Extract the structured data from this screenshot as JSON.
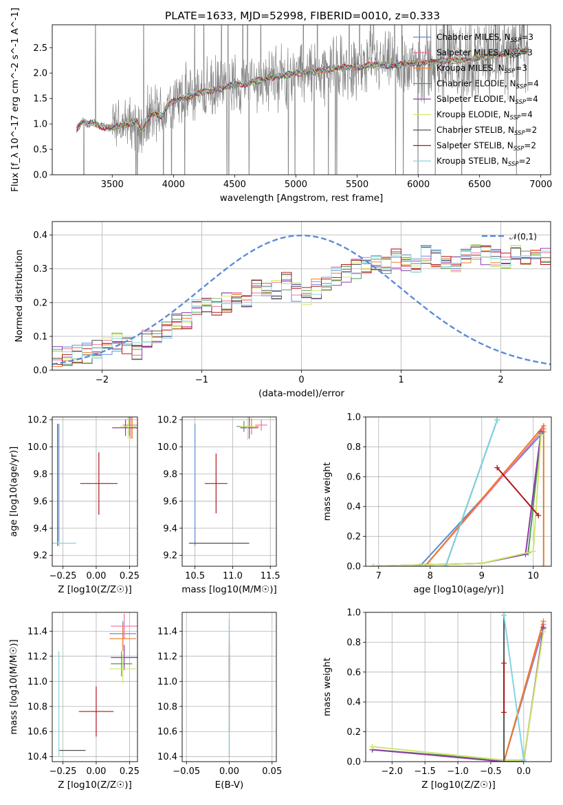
{
  "figure_title": "PLATE=1633, MJD=52998, FIBERID=0010, z=0.333",
  "colors": {
    "Chabrier MILES": "#5b8bd8",
    "Salpeter MILES": "#f06e9c",
    "Kroupa MILES": "#ec7a26",
    "Chabrier ELODIE": "#4e9a4e",
    "Salpeter ELODIE": "#8c3ab0",
    "Kroupa ELODIE": "#cde86a",
    "Chabrier STELIB": "#505050",
    "Salpeter STELIB": "#b01419",
    "Kroupa STELIB": "#7fd5e0",
    "data": "#808080",
    "gauss": "#5b8bd8"
  },
  "chart_data": [
    {
      "id": "spectrum",
      "type": "line",
      "title": "PLATE=1633, MJD=52998, FIBERID=0010, z=0.333",
      "xlabel": "wavelength [Angstrom, rest frame]",
      "ylabel": "Flux [f_λ 10^-17 erg cm^-2 s^-1 A^-1]",
      "xlim": [
        3010,
        7080
      ],
      "ylim": [
        0,
        2.95
      ],
      "xticks": [
        3500,
        4000,
        4500,
        5000,
        5500,
        6000,
        6500,
        7000
      ],
      "yticks": [
        0.0,
        0.5,
        1.0,
        1.5,
        2.0,
        2.5
      ],
      "continuum": {
        "x": [
          3210,
          3260,
          3300,
          3350,
          3400,
          3450,
          3500,
          3550,
          3600,
          3650,
          3700,
          3750,
          3800,
          3850,
          3900,
          3950,
          4000,
          4100,
          4200,
          4300,
          4400,
          4500,
          4600,
          4700,
          4800,
          4900,
          5000,
          5100,
          5200,
          5300,
          5400,
          5500,
          5600,
          5700,
          5800,
          5900,
          6000,
          6100,
          6200,
          6300,
          6400,
          6500,
          6600,
          6700,
          6800,
          6850,
          6900
        ],
        "y": [
          0.9,
          1.05,
          1.0,
          1.02,
          0.96,
          0.92,
          0.93,
          0.96,
          1.0,
          1.02,
          1.06,
          0.86,
          1.13,
          1.22,
          1.15,
          1.35,
          1.45,
          1.52,
          1.6,
          1.65,
          1.7,
          1.78,
          1.8,
          1.85,
          1.92,
          1.95,
          2.0,
          2.02,
          2.05,
          2.08,
          2.12,
          2.12,
          2.15,
          2.16,
          2.14,
          2.18,
          2.2,
          2.22,
          2.24,
          2.25,
          2.27,
          2.3,
          2.34,
          2.38,
          2.42,
          2.45,
          2.45
        ]
      },
      "series": [
        {
          "name": "Chabrier MILES, N_SSP=3"
        },
        {
          "name": "Salpeter MILES, N_SSP=3"
        },
        {
          "name": "Kroupa MILES, N_SSP=3"
        },
        {
          "name": "Chabrier ELODIE, N_SSP=4"
        },
        {
          "name": "Salpeter ELODIE, N_SSP=4"
        },
        {
          "name": "Kroupa ELODIE, N_SSP=4"
        },
        {
          "name": "Chabrier STELIB, N_SSP=2"
        },
        {
          "name": "Salpeter STELIB, N_SSP=2"
        },
        {
          "name": "Kroupa STELIB, N_SSP=2"
        }
      ],
      "legend": "top-right"
    },
    {
      "id": "residuals",
      "type": "line",
      "xlabel": "(data-model)/error",
      "ylabel": "Normed distribution",
      "xlim": [
        -2.5,
        2.5
      ],
      "ylim": [
        0,
        0.44
      ],
      "xticks": [
        -2,
        -1,
        0,
        1,
        2
      ],
      "yticks": [
        0.0,
        0.1,
        0.2,
        0.3,
        0.4
      ],
      "bin_width": 0.1,
      "histogram_mean": [
        0.04,
        0.04,
        0.05,
        0.05,
        0.06,
        0.07,
        0.08,
        0.07,
        0.06,
        0.09,
        0.1,
        0.12,
        0.14,
        0.15,
        0.18,
        0.2,
        0.19,
        0.2,
        0.22,
        0.21,
        0.24,
        0.25,
        0.24,
        0.26,
        0.23,
        0.22,
        0.24,
        0.26,
        0.28,
        0.29,
        0.3,
        0.31,
        0.32,
        0.31,
        0.33,
        0.32,
        0.31,
        0.34,
        0.33,
        0.33,
        0.32,
        0.34,
        0.35,
        0.34,
        0.33,
        0.33,
        0.34,
        0.33,
        0.35,
        0.34,
        0.36,
        0.33,
        0.34,
        0.32,
        0.33,
        0.34,
        0.32,
        0.3,
        0.31,
        0.29,
        0.24,
        0.25,
        0.25,
        0.23,
        0.23,
        0.21,
        0.23,
        0.24,
        0.22,
        0.23,
        0.22,
        0.18,
        0.16,
        0.14,
        0.13,
        0.12,
        0.11,
        0.1,
        0.09,
        0.08,
        0.08,
        0.07,
        0.06,
        0.06,
        0.05,
        0.05,
        0.04,
        0.04,
        0.04,
        0.04,
        0.04
      ],
      "gaussian": {
        "name": "𝒩(0,1)",
        "mean": 0,
        "sigma": 1
      },
      "legend": "top-right"
    },
    {
      "id": "age-vs-Z",
      "type": "scatter",
      "xlabel": "Z [log10(Z/Z☉)]",
      "ylabel": "age [log10(age/yr)]",
      "xlim": [
        -0.33,
        0.31
      ],
      "ylim": [
        9.12,
        10.22
      ],
      "xticks": [
        -0.25,
        0.0,
        0.25
      ],
      "yticks": [
        9.2,
        9.4,
        9.6,
        9.8,
        10.0,
        10.2
      ],
      "points": [
        {
          "s": "Chabrier MILES",
          "x": -0.28,
          "y": 9.72,
          "ex": 0.0,
          "ey": 0.45
        },
        {
          "s": "Salpeter MILES",
          "x": 0.26,
          "y": 10.16,
          "ex": 0.06,
          "ey": 0.1
        },
        {
          "s": "Kroupa MILES",
          "x": 0.27,
          "y": 10.14,
          "ex": 0.05,
          "ey": 0.08
        },
        {
          "s": "Chabrier ELODIE",
          "x": 0.25,
          "y": 10.15,
          "ex": 0.05,
          "ey": 0.07
        },
        {
          "s": "Salpeter ELODIE",
          "x": 0.22,
          "y": 10.14,
          "ex": 0.1,
          "ey": 0.06
        },
        {
          "s": "Kroupa ELODIE",
          "x": 0.24,
          "y": 10.15,
          "ex": 0.06,
          "ey": 0.09
        },
        {
          "s": "Chabrier STELIB",
          "x": -0.29,
          "y": 9.72,
          "ex": 0.0,
          "ey": 0.45
        },
        {
          "s": "Salpeter STELIB",
          "x": 0.02,
          "y": 9.73,
          "ex": 0.14,
          "ey": 0.23
        },
        {
          "s": "Kroupa STELIB",
          "x": -0.28,
          "y": 9.29,
          "ex": 0.13,
          "ey": 0.02
        }
      ]
    },
    {
      "id": "age-vs-mass",
      "type": "scatter",
      "xlabel": "mass [log10(M/M☉)]",
      "ylabel": "",
      "xlim": [
        10.33,
        11.58
      ],
      "ylim": [
        9.12,
        10.22
      ],
      "xticks": [
        10.5,
        11.0,
        11.5
      ],
      "yticks": [
        9.2,
        9.4,
        9.6,
        9.8,
        10.0,
        10.2
      ],
      "points": [
        {
          "s": "Chabrier MILES",
          "x": 10.5,
          "y": 9.72,
          "ex": 0.0,
          "ey": 0.45
        },
        {
          "s": "Salpeter MILES",
          "x": 11.38,
          "y": 10.16,
          "ex": 0.08,
          "ey": 0.04
        },
        {
          "s": "Kroupa MILES",
          "x": 11.25,
          "y": 10.15,
          "ex": 0.1,
          "ey": 0.06
        },
        {
          "s": "Chabrier ELODIE",
          "x": 11.15,
          "y": 10.15,
          "ex": 0.1,
          "ey": 0.04
        },
        {
          "s": "Salpeter ELODIE",
          "x": 11.22,
          "y": 10.14,
          "ex": 0.12,
          "ey": 0.08
        },
        {
          "s": "Kroupa ELODIE",
          "x": 11.2,
          "y": 10.15,
          "ex": 0.1,
          "ey": 0.1
        },
        {
          "s": "Chabrier STELIB",
          "x": 10.82,
          "y": 9.29,
          "ex": 0.4,
          "ey": 0.0
        },
        {
          "s": "Salpeter STELIB",
          "x": 10.78,
          "y": 9.73,
          "ex": 0.15,
          "ey": 0.22
        },
        {
          "s": "Kroupa STELIB",
          "x": 10.5,
          "y": 9.29,
          "ex": 0.0,
          "ey": 0.0
        }
      ]
    },
    {
      "id": "mass-weight-vs-age",
      "type": "line",
      "xlabel": "age [log10(age/yr)]",
      "ylabel": "mass weight",
      "xlim": [
        6.75,
        10.35
      ],
      "ylim": [
        0,
        1.0
      ],
      "xticks": [
        7,
        8,
        9,
        10
      ],
      "yticks": [
        0.0,
        0.2,
        0.4,
        0.6,
        0.8,
        1.0
      ],
      "lines": [
        {
          "s": "Chabrier MILES",
          "x": [
            7.8,
            10.2
          ],
          "y": [
            0.0,
            0.9
          ]
        },
        {
          "s": "Salpeter MILES",
          "x": [
            7.9,
            10.2
          ],
          "y": [
            0.0,
            0.92
          ]
        },
        {
          "s": "Kroupa MILES",
          "x": [
            7.9,
            10.2,
            10.2
          ],
          "y": [
            0.0,
            0.94,
            0.0
          ]
        },
        {
          "s": "Chabrier ELODIE",
          "x": [
            6.9,
            9.0,
            9.9,
            10.15
          ],
          "y": [
            0.0,
            0.02,
            0.09,
            0.89
          ]
        },
        {
          "s": "Salpeter ELODIE",
          "x": [
            6.9,
            9.0,
            9.85,
            10.15
          ],
          "y": [
            0.0,
            0.02,
            0.08,
            0.9
          ]
        },
        {
          "s": "Kroupa ELODIE",
          "x": [
            6.9,
            9.0,
            10.0,
            10.15
          ],
          "y": [
            0.0,
            0.02,
            0.1,
            0.88
          ]
        },
        {
          "s": "Chabrier STELIB",
          "x": [
            8.3,
            9.3
          ],
          "y": [
            0.0,
            0.98
          ]
        },
        {
          "s": "Salpeter STELIB",
          "x": [
            9.3,
            10.1
          ],
          "y": [
            0.66,
            0.34
          ]
        },
        {
          "s": "Kroupa STELIB",
          "x": [
            8.3,
            9.3
          ],
          "y": [
            0.0,
            0.98
          ]
        }
      ]
    },
    {
      "id": "mass-vs-Z",
      "type": "scatter",
      "xlabel": "Z [log10(Z/Z☉)]",
      "ylabel": "mass [log10(M/M☉)]",
      "xlim": [
        -0.33,
        0.31
      ],
      "ylim": [
        10.36,
        11.55
      ],
      "xticks": [
        -0.25,
        0.0,
        0.25
      ],
      "yticks": [
        10.4,
        10.6,
        10.8,
        11.0,
        11.2,
        11.4
      ],
      "points": [
        {
          "s": "Chabrier MILES",
          "x": 0.2,
          "y": 11.38,
          "ex": 0.1,
          "ey": 0.1
        },
        {
          "s": "Salpeter MILES",
          "x": 0.21,
          "y": 11.44,
          "ex": 0.1,
          "ey": 0.1
        },
        {
          "s": "Kroupa MILES",
          "x": 0.2,
          "y": 11.34,
          "ex": 0.1,
          "ey": 0.1
        },
        {
          "s": "Chabrier ELODIE",
          "x": 0.19,
          "y": 11.14,
          "ex": 0.08,
          "ey": 0.1
        },
        {
          "s": "Salpeter ELODIE",
          "x": 0.21,
          "y": 11.19,
          "ex": 0.1,
          "ey": 0.1
        },
        {
          "s": "Kroupa ELODIE",
          "x": 0.2,
          "y": 11.1,
          "ex": 0.1,
          "ey": 0.12
        },
        {
          "s": "Chabrier STELIB",
          "x": -0.18,
          "y": 10.45,
          "ex": 0.1,
          "ey": 0.0
        },
        {
          "s": "Salpeter STELIB",
          "x": 0.0,
          "y": 10.76,
          "ex": 0.13,
          "ey": 0.2
        },
        {
          "s": "Kroupa STELIB",
          "x": -0.28,
          "y": 10.82,
          "ex": 0.0,
          "ey": 0.42
        }
      ]
    },
    {
      "id": "mass-vs-EBV",
      "type": "scatter",
      "xlabel": "E(B-V)",
      "ylabel": "",
      "xlim": [
        -0.055,
        0.055
      ],
      "ylim": [
        10.36,
        11.55
      ],
      "xticks": [
        -0.05,
        0.0,
        0.05
      ],
      "yticks": [
        10.4,
        10.6,
        10.8,
        11.0,
        11.2,
        11.4
      ],
      "points": [
        {
          "s": "Chabrier MILES",
          "x": 0.0,
          "y": 11.2,
          "ex": 0.0,
          "ey": 0.25
        },
        {
          "s": "Salpeter MILES",
          "x": 0.0,
          "y": 11.3,
          "ex": 0.0,
          "ey": 0.2
        },
        {
          "s": "Kroupa MILES",
          "x": 0.0,
          "y": 11.2,
          "ex": 0.0,
          "ey": 0.15
        },
        {
          "s": "Chabrier ELODIE",
          "x": 0.0,
          "y": 11.1,
          "ex": 0.0,
          "ey": 0.1
        },
        {
          "s": "Salpeter ELODIE",
          "x": 0.0,
          "y": 11.15,
          "ex": 0.0,
          "ey": 0.15
        },
        {
          "s": "Kroupa ELODIE",
          "x": 0.0,
          "y": 11.1,
          "ex": 0.0,
          "ey": 0.1
        },
        {
          "s": "Chabrier STELIB",
          "x": 0.0,
          "y": 10.8,
          "ex": 0.0,
          "ey": 0.4
        },
        {
          "s": "Salpeter STELIB",
          "x": 0.0,
          "y": 10.9,
          "ex": 0.0,
          "ey": 0.3
        },
        {
          "s": "Kroupa STELIB",
          "x": 0.0,
          "y": 10.95,
          "ex": 0.0,
          "ey": 0.55
        }
      ]
    },
    {
      "id": "mass-weight-vs-Z",
      "type": "line",
      "xlabel": "Z [log10(Z/Z☉)]",
      "ylabel": "mass weight",
      "xlim": [
        -2.4,
        0.42
      ],
      "ylim": [
        0,
        1.0
      ],
      "xticks": [
        -2.0,
        -1.5,
        -1.0,
        -0.5,
        0.0
      ],
      "yticks": [
        0.0,
        0.2,
        0.4,
        0.6,
        0.8,
        1.0
      ],
      "lines": [
        {
          "s": "Chabrier MILES",
          "x": [
            -0.3,
            0.3
          ],
          "y": [
            0.0,
            0.9
          ]
        },
        {
          "s": "Salpeter MILES",
          "x": [
            -0.3,
            0.3
          ],
          "y": [
            0.0,
            0.92
          ]
        },
        {
          "s": "Kroupa MILES",
          "x": [
            -0.3,
            0.3
          ],
          "y": [
            0.0,
            0.94
          ]
        },
        {
          "s": "Chabrier ELODIE",
          "x": [
            -2.3,
            -0.3,
            0.0,
            0.3
          ],
          "y": [
            0.08,
            0.01,
            0.01,
            0.89
          ]
        },
        {
          "s": "Salpeter ELODIE",
          "x": [
            -2.3,
            -0.3,
            0.0,
            0.3
          ],
          "y": [
            0.08,
            0.0,
            0.0,
            0.9
          ]
        },
        {
          "s": "Kroupa ELODIE",
          "x": [
            -2.3,
            -0.3,
            0.0,
            0.3
          ],
          "y": [
            0.1,
            0.01,
            0.01,
            0.87
          ]
        },
        {
          "s": "Chabrier STELIB",
          "x": [
            -0.3,
            -0.3
          ],
          "y": [
            0.0,
            0.98
          ]
        },
        {
          "s": "Salpeter STELIB",
          "x": [
            -0.3,
            -0.3
          ],
          "y": [
            0.33,
            0.66
          ]
        },
        {
          "s": "Kroupa STELIB",
          "x": [
            -0.3,
            0.0
          ],
          "y": [
            0.98,
            0.01
          ]
        }
      ]
    }
  ]
}
